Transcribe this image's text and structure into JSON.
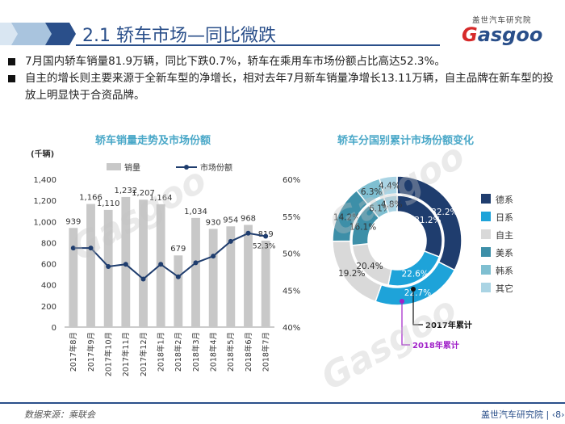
{
  "header": {
    "title": "2.1 轿车市场—同比微跌",
    "brand_cn": "盖世汽车研究院",
    "brand_logo_prefix": "G",
    "brand_logo_rest": "asgoo"
  },
  "bullets": [
    "7月国内轿车销量81.9万辆，同比下跌0.7%，轿车在乘用车市场份额占比高达52.3%。",
    "自主的增长则主要来源于全新车型的净增长，相对去年7月新车销量净增长13.11万辆，自主品牌在新车型的投放上明显快于合资品牌。"
  ],
  "footer": {
    "source": "数据来源：乘联会",
    "org": "盖世汽车研究院",
    "page": "‹8›"
  },
  "watermark": "Gasgoo",
  "colors": {
    "bar": "#c8c8c8",
    "line": "#1f3d6e",
    "title_blue": "#2a4f8a",
    "chart_title": "#4aa8c8"
  },
  "chart_data": [
    {
      "type": "bar",
      "title": "轿车销量走势及市场份额",
      "unit_label": "(千辆)",
      "categories": [
        "2017年8月",
        "2017年9月",
        "2017年10月",
        "2017年11月",
        "2017年12月",
        "2018年1月",
        "2018年2月",
        "2018年3月",
        "2018年4月",
        "2018年5月",
        "2018年6月",
        "2018年7月"
      ],
      "series": [
        {
          "name": "销量",
          "kind": "bar",
          "axis": "left",
          "values": [
            939,
            1166,
            1110,
            1232,
            1207,
            1164,
            679,
            1034,
            930,
            954,
            968,
            819
          ]
        },
        {
          "name": "市场份额",
          "kind": "line",
          "axis": "right",
          "values": [
            50.7,
            50.7,
            48.2,
            48.5,
            46.5,
            48.5,
            46.8,
            48.7,
            49.6,
            51.6,
            52.7,
            52.3
          ]
        }
      ],
      "line_label": "52.3%",
      "ylim_left": [
        0,
        1400
      ],
      "yticks_left": [
        "0",
        "200",
        "400",
        "600",
        "800",
        "1,000",
        "1,200",
        "1,400"
      ],
      "ylim_right": [
        40,
        60
      ],
      "yticks_right": [
        "40%",
        "45%",
        "50%",
        "55%",
        "60%"
      ],
      "legend_position": "top"
    },
    {
      "type": "pie",
      "title": "轿车分国别累计市场份额变化",
      "categories": [
        "德系",
        "日系",
        "自主",
        "美系",
        "韩系",
        "其它"
      ],
      "colors": [
        "#1f3d6e",
        "#1ea3d9",
        "#d9d9d9",
        "#3d8fa8",
        "#7fbfd1",
        "#aad4e4"
      ],
      "series": [
        {
          "name": "2017年累计",
          "ring": "outer",
          "values": [
            32.2,
            22.7,
            19.2,
            14.2,
            6.3,
            4.4
          ],
          "labels": [
            "32.2%",
            "22.7%",
            "19.2%",
            "14.2%",
            "6.3%",
            "4.4%"
          ]
        },
        {
          "name": "2018年累计",
          "ring": "inner",
          "values": [
            31.2,
            22.6,
            20.4,
            16.1,
            6.1,
            4.8
          ],
          "labels": [
            "31.2%",
            "22.6%",
            "20.4%",
            "16.1%",
            "6.1%",
            "4.8%"
          ]
        }
      ],
      "legend_position": "right"
    }
  ]
}
